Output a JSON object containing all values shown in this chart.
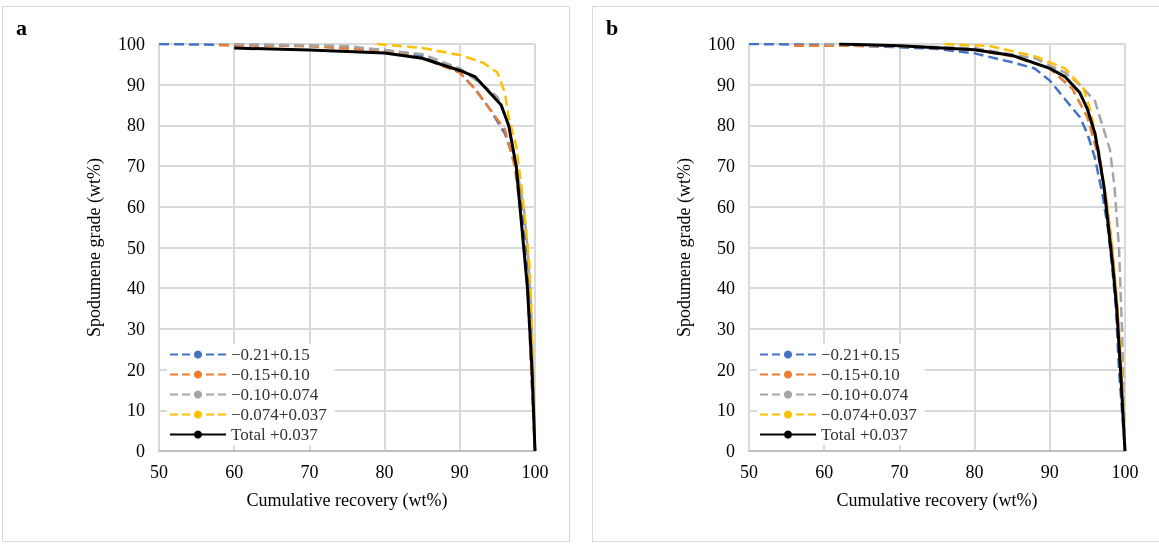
{
  "chart_data": [
    {
      "type": "line",
      "title": "a",
      "xlabel": "Cumulative recovery (wt%)",
      "ylabel": "Spodumene grade (wt%)",
      "xlim": [
        50,
        100
      ],
      "xticks": [
        50,
        60,
        70,
        80,
        90,
        100
      ],
      "ylim": [
        0,
        100
      ],
      "yticks": [
        0,
        10,
        20,
        30,
        40,
        50,
        60,
        70,
        80,
        90,
        100
      ],
      "grid": true,
      "legend": "bottom left",
      "marker": "none",
      "series": [
        {
          "name": "−0.21+0.15",
          "color": "#4472c4",
          "line_style": "dashed",
          "x": [
            50,
            70,
            80,
            85,
            90,
            92,
            94,
            96,
            97.5,
            98.3,
            98.8,
            99.2,
            99.5,
            100
          ],
          "values": [
            100,
            99.5,
            98.5,
            97,
            93,
            89,
            84,
            78,
            70,
            60,
            50,
            40,
            20,
            0
          ]
        },
        {
          "name": "−0.15+0.10",
          "color": "#ed7d31",
          "line_style": "dashed",
          "x": [
            58,
            70,
            80,
            85,
            90,
            92,
            94,
            96,
            97.3,
            98,
            98.5,
            99,
            99.5,
            100
          ],
          "values": [
            99.7,
            99.5,
            98.3,
            96.5,
            93,
            89,
            84,
            79,
            70,
            60,
            50,
            40,
            20,
            0
          ]
        },
        {
          "name": "−0.10+0.074",
          "color": "#a5a5a5",
          "line_style": "dashed",
          "x": [
            60,
            75,
            85,
            90,
            93,
            95,
            96.5,
            97.5,
            98.5,
            99,
            99.5,
            100
          ],
          "values": [
            100,
            99.5,
            97.5,
            94,
            90,
            87,
            80,
            70,
            60,
            50,
            35,
            0
          ]
        },
        {
          "name": "−0.074+0.037",
          "color": "#ffc000",
          "line_style": "dashed",
          "x": [
            79,
            85,
            90,
            93,
            95,
            96,
            96.5,
            97.5,
            98.2,
            98.8,
            99.3,
            99.6,
            100
          ],
          "values": [
            100,
            99,
            97.3,
            95.5,
            93,
            88,
            82,
            75,
            65,
            55,
            45,
            30,
            0
          ]
        },
        {
          "name": "Total +0.037",
          "color": "#000000",
          "line_style": "solid",
          "x": [
            60,
            70,
            80,
            85,
            90,
            92,
            94,
            95.5,
            96.5,
            97,
            97.5,
            98,
            98.5,
            99,
            99.3,
            99.6,
            99.8,
            100
          ],
          "values": [
            99,
            98.5,
            97.8,
            96.5,
            93.5,
            92,
            88,
            85,
            80,
            75,
            70,
            60,
            50,
            40,
            30,
            20,
            10,
            0
          ]
        }
      ]
    },
    {
      "type": "line",
      "title": "b",
      "xlabel": "Cumulative recovery (wt%)",
      "ylabel": "Spodumene grade (wt%)",
      "xlim": [
        50,
        100
      ],
      "xticks": [
        50,
        60,
        70,
        80,
        90,
        100
      ],
      "ylim": [
        0,
        100
      ],
      "yticks": [
        0,
        10,
        20,
        30,
        40,
        50,
        60,
        70,
        80,
        90,
        100
      ],
      "grid": true,
      "legend": "bottom left",
      "marker": "none",
      "series": [
        {
          "name": "−0.21+0.15",
          "color": "#4472c4",
          "line_style": "dashed",
          "x": [
            50,
            60,
            70,
            75,
            80,
            85,
            88,
            90,
            92,
            94,
            95,
            96,
            97,
            97.7,
            98.3,
            98.8,
            99.2,
            100
          ],
          "values": [
            100,
            99.8,
            99.2,
            98.8,
            97.7,
            95.5,
            94,
            91,
            86.5,
            82,
            78,
            72,
            63,
            55,
            45,
            35,
            20,
            0
          ]
        },
        {
          "name": "−0.15+0.10",
          "color": "#ed7d31",
          "line_style": "dashed",
          "x": [
            56,
            70,
            80,
            85,
            90,
            93,
            95,
            96.5,
            97.5,
            98.3,
            99,
            99.5,
            100
          ],
          "values": [
            99.6,
            99.5,
            98.5,
            97,
            94,
            89,
            82,
            72,
            62,
            50,
            35,
            20,
            0
          ]
        },
        {
          "name": "−0.10+0.074",
          "color": "#a5a5a5",
          "line_style": "dashed",
          "x": [
            60,
            80,
            88,
            92,
            94,
            96,
            97,
            98,
            98.6,
            99.2,
            99.6,
            100
          ],
          "values": [
            100,
            99,
            96.5,
            93,
            90,
            86,
            80,
            74,
            65,
            50,
            30,
            0
          ]
        },
        {
          "name": "−0.074+0.037",
          "color": "#ffc000",
          "line_style": "dashed",
          "x": [
            76,
            82,
            88,
            92,
            94.5,
            95.5,
            96.5,
            97.5,
            98.3,
            99,
            99.6,
            100
          ],
          "values": [
            100,
            99.5,
            97,
            94,
            89,
            83,
            74,
            62,
            50,
            35,
            20,
            0
          ]
        },
        {
          "name": "Total +0.037",
          "color": "#000000",
          "line_style": "solid",
          "x": [
            62,
            70,
            80,
            85,
            90,
            92,
            94,
            95,
            96,
            96.5,
            97.2,
            97.8,
            98.4,
            98.9,
            99.4,
            100
          ],
          "values": [
            100,
            99.6,
            98.6,
            97.2,
            94,
            92,
            88,
            84,
            78,
            73,
            65,
            55,
            45,
            35,
            20,
            0
          ]
        }
      ]
    }
  ]
}
